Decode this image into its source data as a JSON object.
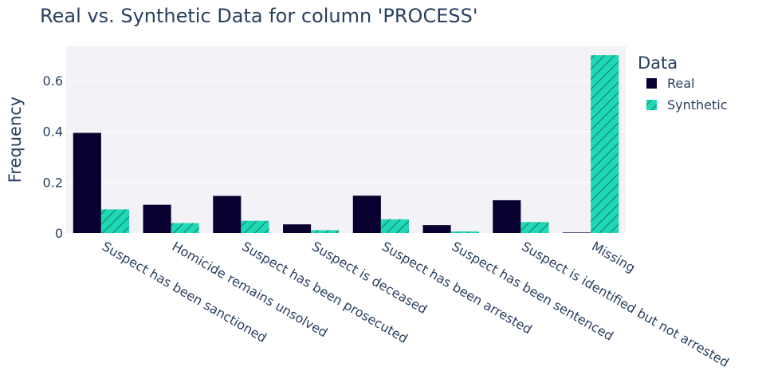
{
  "chart_data": {
    "type": "bar",
    "title": "Real vs. Synthetic Data for column 'PROCESS'",
    "xlabel": "",
    "ylabel": "Frequency",
    "categories": [
      "Suspect has been sanctioned",
      "Homicide remains unsolved",
      "Suspect has been prosecuted",
      "Suspect is deceased",
      "Suspect has been arrested",
      "Suspect has been sentenced",
      "Suspect is identified but not arrested",
      "Missing"
    ],
    "series": [
      {
        "name": "Real",
        "values": [
          0.394,
          0.111,
          0.146,
          0.034,
          0.147,
          0.031,
          0.129,
          0.002
        ],
        "color": "#0a0030"
      },
      {
        "name": "Synthetic",
        "values": [
          0.093,
          0.039,
          0.048,
          0.011,
          0.054,
          0.006,
          0.043,
          0.7
        ],
        "color": "#1fd8b4",
        "pattern": "diagonal-hatch"
      }
    ],
    "ylim": [
      0,
      0.735
    ],
    "yticks": [
      0,
      0.2,
      0.4,
      0.6
    ],
    "ytick_labels": [
      "0",
      "0.2",
      "0.4",
      "0.6"
    ],
    "legend": {
      "title": "Data",
      "placement": "top-right-outside"
    },
    "grid": true,
    "plot_background": "#f2f2f7"
  }
}
